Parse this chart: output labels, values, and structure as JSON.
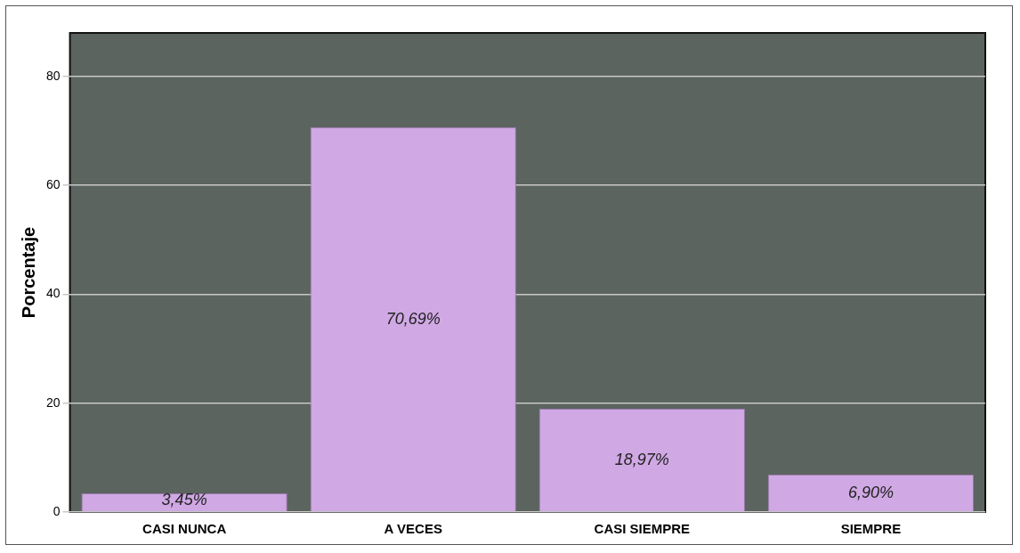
{
  "chart_data": {
    "type": "bar",
    "ylabel": "Porcentaje",
    "categories": [
      "CASI NUNCA",
      "A VECES",
      "CASI SIEMPRE",
      "SIEMPRE"
    ],
    "values": [
      3.45,
      70.69,
      18.97,
      6.9
    ],
    "value_labels": [
      "3,45%",
      "70,69%",
      "18,97%",
      "6,90%"
    ],
    "color": "#d0a8e4",
    "ylim": [
      0,
      88
    ],
    "yticks": [
      0,
      20,
      40,
      60,
      80
    ],
    "grid": "y",
    "legend": false
  }
}
